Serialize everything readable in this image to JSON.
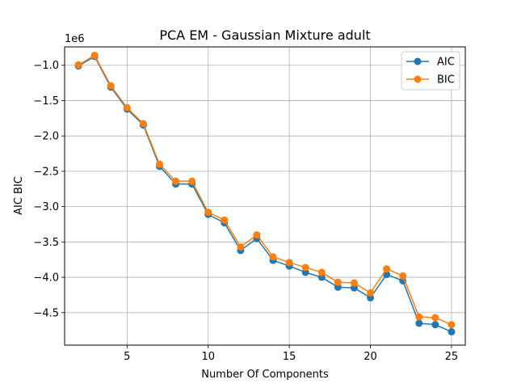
{
  "chart_data": {
    "type": "line",
    "title": "PCA EM - Gaussian Mixture adult",
    "xlabel": "Number Of Components",
    "ylabel": "AIC BIC",
    "y_offset_label": "1e6",
    "xlim": [
      1.15,
      25.85
    ],
    "ylim": [
      -4.96,
      -0.74
    ],
    "x_ticks": [
      5,
      10,
      15,
      20,
      25
    ],
    "x_tick_labels": [
      "5",
      "10",
      "15",
      "20",
      "25"
    ],
    "y_ticks": [
      -1.0,
      -1.5,
      -2.0,
      -2.5,
      -3.0,
      -3.5,
      -4.0,
      -4.5
    ],
    "y_tick_labels": [
      "−1.0",
      "−1.5",
      "−2.0",
      "−2.5",
      "−3.0",
      "−3.5",
      "−4.0",
      "−4.5"
    ],
    "grid": true,
    "legend_position": "top-right",
    "x": [
      2,
      3,
      4,
      5,
      6,
      7,
      8,
      9,
      10,
      11,
      12,
      13,
      14,
      15,
      16,
      17,
      18,
      19,
      20,
      21,
      22,
      23,
      24,
      25
    ],
    "series": [
      {
        "name": "AIC",
        "color": "#1f77b4",
        "values": [
          -1.01,
          -0.875,
          -1.31,
          -1.62,
          -1.845,
          -2.43,
          -2.68,
          -2.68,
          -3.11,
          -3.23,
          -3.62,
          -3.45,
          -3.76,
          -3.84,
          -3.93,
          -4.0,
          -4.14,
          -4.15,
          -4.29,
          -3.96,
          -4.05,
          -4.65,
          -4.67,
          -4.77
        ]
      },
      {
        "name": "BIC",
        "color": "#ff7f0e",
        "values": [
          -0.995,
          -0.86,
          -1.29,
          -1.6,
          -1.825,
          -2.4,
          -2.64,
          -2.64,
          -3.08,
          -3.19,
          -3.57,
          -3.4,
          -3.71,
          -3.79,
          -3.86,
          -3.93,
          -4.07,
          -4.08,
          -4.22,
          -3.88,
          -3.98,
          -4.56,
          -4.57,
          -4.67
        ]
      }
    ]
  }
}
